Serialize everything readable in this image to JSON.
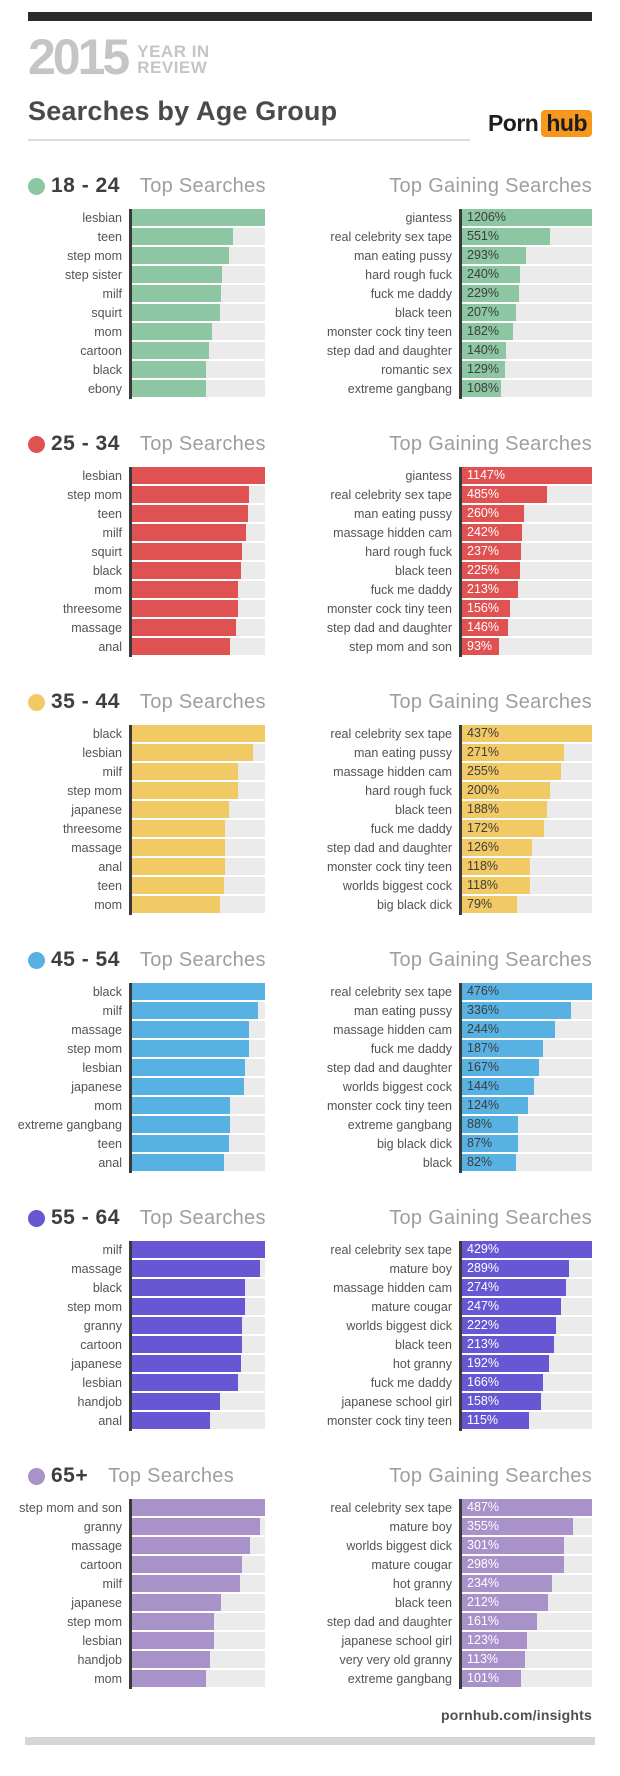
{
  "page": {
    "top_brand": {
      "year": "2015",
      "tagline_line1": "YEAR IN",
      "tagline_line2": "REVIEW"
    },
    "title": "Searches by Age Group",
    "logo": {
      "first": "Porn",
      "second": "hub",
      "accent_color": "#f7971d"
    },
    "footer_url": "pornhub.com/insights"
  },
  "chart_data": [
    {
      "age_group": "18 - 24",
      "accent_color": "#8cc6a3",
      "value_label_color": "#3d3d3d",
      "top_searches": {
        "type": "bar",
        "title": "Top Searches",
        "categories": [
          "lesbian",
          "teen",
          "step mom",
          "step sister",
          "milf",
          "squirt",
          "mom",
          "cartoon",
          "black",
          "ebony"
        ],
        "relative_widths": [
          1.0,
          0.76,
          0.73,
          0.68,
          0.67,
          0.66,
          0.6,
          0.58,
          0.56,
          0.56
        ]
      },
      "top_gaining": {
        "type": "bar",
        "title": "Top Gaining Searches",
        "categories": [
          "giantess",
          "real celebrity sex tape",
          "man eating pussy",
          "hard rough fuck",
          "fuck me daddy",
          "black teen",
          "monster cock tiny teen",
          "step dad and daughter",
          "romantic sex",
          "extreme gangbang"
        ],
        "values_percent": [
          1206,
          551,
          293,
          240,
          229,
          207,
          182,
          140,
          129,
          108
        ]
      }
    },
    {
      "age_group": "25 - 34",
      "accent_color": "#e05252",
      "value_label_color": "#ffffff",
      "top_searches": {
        "type": "bar",
        "title": "Top Searches",
        "categories": [
          "lesbian",
          "step mom",
          "teen",
          "milf",
          "squirt",
          "black",
          "mom",
          "threesome",
          "massage",
          "anal"
        ],
        "relative_widths": [
          1.0,
          0.88,
          0.87,
          0.86,
          0.83,
          0.82,
          0.8,
          0.8,
          0.78,
          0.74
        ]
      },
      "top_gaining": {
        "type": "bar",
        "title": "Top Gaining Searches",
        "categories": [
          "giantess",
          "real celebrity sex tape",
          "man eating pussy",
          "massage hidden cam",
          "hard rough fuck",
          "black teen",
          "fuck me daddy",
          "monster cock tiny teen",
          "step dad and daughter",
          "step mom and son"
        ],
        "values_percent": [
          1147,
          485,
          260,
          242,
          237,
          225,
          213,
          156,
          146,
          93
        ]
      }
    },
    {
      "age_group": "35 - 44",
      "accent_color": "#f1c965",
      "value_label_color": "#3d3d3d",
      "top_searches": {
        "type": "bar",
        "title": "Top Searches",
        "categories": [
          "black",
          "lesbian",
          "milf",
          "step mom",
          "japanese",
          "threesome",
          "massage",
          "anal",
          "teen",
          "mom"
        ],
        "relative_widths": [
          1.0,
          0.91,
          0.8,
          0.8,
          0.73,
          0.7,
          0.7,
          0.7,
          0.69,
          0.66
        ]
      },
      "top_gaining": {
        "type": "bar",
        "title": "Top Gaining Searches",
        "categories": [
          "real celebrity sex tape",
          "man eating pussy",
          "massage hidden cam",
          "hard rough fuck",
          "black teen",
          "fuck me daddy",
          "step dad and daughter",
          "monster cock tiny teen",
          "worlds biggest cock",
          "big black dick"
        ],
        "values_percent": [
          437,
          271,
          255,
          200,
          188,
          172,
          126,
          118,
          118,
          79
        ]
      }
    },
    {
      "age_group": "45 - 54",
      "accent_color": "#57b2e3",
      "value_label_color": "#3d3d3d",
      "top_searches": {
        "type": "bar",
        "title": "Top Searches",
        "categories": [
          "black",
          "milf",
          "massage",
          "step mom",
          "lesbian",
          "japanese",
          "mom",
          "extreme gangbang",
          "teen",
          "anal"
        ],
        "relative_widths": [
          1.0,
          0.95,
          0.88,
          0.88,
          0.85,
          0.84,
          0.74,
          0.74,
          0.73,
          0.69
        ]
      },
      "top_gaining": {
        "type": "bar",
        "title": "Top Gaining Searches",
        "categories": [
          "real celebrity sex tape",
          "man eating pussy",
          "massage hidden cam",
          "fuck me daddy",
          "step dad and daughter",
          "worlds biggest cock",
          "monster cock tiny teen",
          "extreme gangbang",
          "big black dick",
          "black"
        ],
        "values_percent": [
          476,
          336,
          244,
          187,
          167,
          144,
          124,
          88,
          87,
          82
        ]
      }
    },
    {
      "age_group": "55 - 64",
      "accent_color": "#6757d2",
      "value_label_color": "#ffffff",
      "top_searches": {
        "type": "bar",
        "title": "Top Searches",
        "categories": [
          "milf",
          "massage",
          "black",
          "step mom",
          "granny",
          "cartoon",
          "japanese",
          "lesbian",
          "handjob",
          "anal"
        ],
        "relative_widths": [
          1.0,
          0.96,
          0.85,
          0.85,
          0.83,
          0.83,
          0.82,
          0.8,
          0.66,
          0.59
        ]
      },
      "top_gaining": {
        "type": "bar",
        "title": "Top Gaining Searches",
        "categories": [
          "real celebrity sex tape",
          "mature boy",
          "massage hidden cam",
          "mature cougar",
          "worlds biggest dick",
          "black teen",
          "hot granny",
          "fuck me daddy",
          "japanese school girl",
          "monster cock tiny teen"
        ],
        "values_percent": [
          429,
          289,
          274,
          247,
          222,
          213,
          192,
          166,
          158,
          115
        ]
      }
    },
    {
      "age_group": "65+",
      "accent_color": "#a991c9",
      "value_label_color": "#ffffff",
      "top_searches": {
        "type": "bar",
        "title": "Top Searches",
        "categories": [
          "step mom and son",
          "granny",
          "massage",
          "cartoon",
          "milf",
          "japanese",
          "step mom",
          "lesbian",
          "handjob",
          "mom"
        ],
        "relative_widths": [
          1.0,
          0.96,
          0.89,
          0.83,
          0.81,
          0.67,
          0.62,
          0.62,
          0.59,
          0.56
        ]
      },
      "top_gaining": {
        "type": "bar",
        "title": "Top Gaining Searches",
        "categories": [
          "real celebrity sex tape",
          "mature boy",
          "worlds biggest dick",
          "mature cougar",
          "hot granny",
          "black teen",
          "step dad and daughter",
          "japanese school girl",
          "very very old granny",
          "extreme gangbang"
        ],
        "values_percent": [
          487,
          355,
          301,
          298,
          234,
          212,
          161,
          123,
          113,
          101
        ]
      }
    }
  ]
}
